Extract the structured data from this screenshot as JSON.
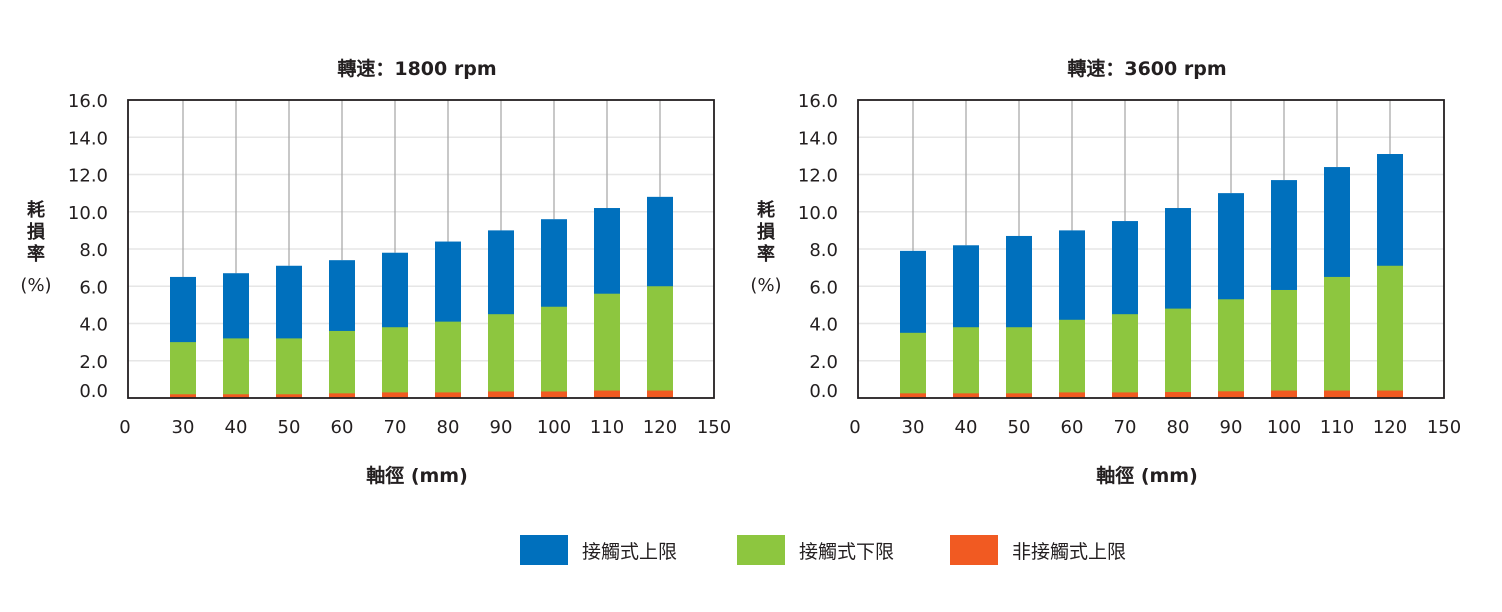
{
  "colors": {
    "upper_contact": "#0070BD",
    "lower_contact": "#8DC63F",
    "non_contact": "#F15A22"
  },
  "legend": [
    "接觸式上限",
    "接觸式下限",
    "非接觸式上限"
  ],
  "chart_data": [
    {
      "type": "bar",
      "title": "轉速：1800 rpm",
      "xlabel": "軸徑 (mm)",
      "ylabel": [
        "耗",
        "損",
        "率",
        "(%)"
      ],
      "x_tick_labels": [
        "0",
        "30",
        "40",
        "50",
        "60",
        "70",
        "80",
        "90",
        "100",
        "110",
        "120",
        "150"
      ],
      "categories": [
        "30",
        "40",
        "50",
        "60",
        "70",
        "80",
        "90",
        "100",
        "110",
        "120"
      ],
      "y_ticks": [
        "0.0",
        "2.0",
        "4.0",
        "6.0",
        "8.0",
        "10.0",
        "12.0",
        "14.0",
        "16.0"
      ],
      "ylim": [
        0,
        16
      ],
      "grid": true,
      "series": [
        {
          "name": "接觸式上限",
          "values": [
            6.5,
            6.7,
            7.1,
            7.4,
            7.8,
            8.4,
            9.0,
            9.6,
            10.2,
            10.8
          ]
        },
        {
          "name": "接觸式下限",
          "values": [
            3.0,
            3.2,
            3.2,
            3.6,
            3.8,
            4.1,
            4.5,
            4.9,
            5.6,
            6.0
          ]
        },
        {
          "name": "非接觸式上限",
          "values": [
            0.2,
            0.2,
            0.2,
            0.25,
            0.3,
            0.3,
            0.35,
            0.35,
            0.4,
            0.4
          ]
        }
      ]
    },
    {
      "type": "bar",
      "title": "轉速：3600 rpm",
      "xlabel": "軸徑 (mm)",
      "ylabel": [
        "耗",
        "損",
        "率",
        "(%)"
      ],
      "x_tick_labels": [
        "0",
        "30",
        "40",
        "50",
        "60",
        "70",
        "80",
        "90",
        "100",
        "110",
        "120",
        "150"
      ],
      "categories": [
        "30",
        "40",
        "50",
        "60",
        "70",
        "80",
        "90",
        "100",
        "110",
        "120"
      ],
      "y_ticks": [
        "0.0",
        "2.0",
        "4.0",
        "6.0",
        "8.0",
        "10.0",
        "12.0",
        "14.0",
        "16.0"
      ],
      "ylim": [
        0,
        16
      ],
      "grid": true,
      "series": [
        {
          "name": "接觸式上限",
          "values": [
            7.9,
            8.2,
            8.7,
            9.0,
            9.5,
            10.2,
            11.0,
            11.7,
            12.4,
            13.1
          ]
        },
        {
          "name": "接觸式下限",
          "values": [
            3.5,
            3.8,
            3.8,
            4.2,
            4.5,
            4.8,
            5.3,
            5.8,
            6.5,
            7.1
          ]
        },
        {
          "name": "非接觸式上限",
          "values": [
            0.25,
            0.25,
            0.25,
            0.3,
            0.3,
            0.32,
            0.36,
            0.4,
            0.4,
            0.4
          ]
        }
      ]
    }
  ]
}
